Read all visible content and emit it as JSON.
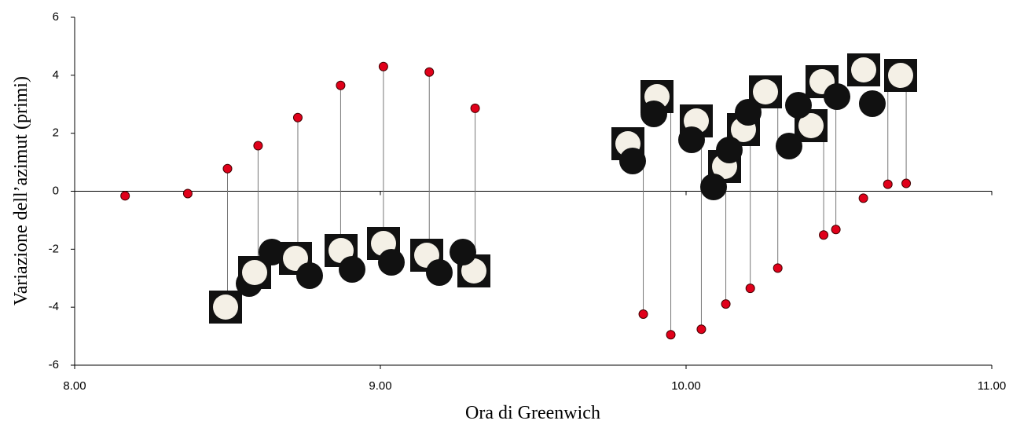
{
  "chart_data": {
    "type": "scatter",
    "x_label": "Ora di Greenwich",
    "y_label": "Variazione dell’azimut (primi)",
    "series": [
      {
        "color": "#e0001a",
        "x": [
          8.165,
          8.37,
          8.5,
          8.6,
          8.73,
          8.87,
          9.01,
          9.16,
          9.31,
          9.86,
          9.95,
          10.05,
          10.13,
          10.21,
          10.3,
          10.45,
          10.49,
          10.58,
          10.66,
          10.72
        ],
        "values": [
          -0.16,
          -0.08,
          0.78,
          1.57,
          2.54,
          3.65,
          4.3,
          4.11,
          2.86,
          -4.24,
          -4.95,
          -4.76,
          -3.89,
          -3.35,
          -2.65,
          -1.51,
          -1.32,
          -0.24,
          0.24,
          0.27
        ]
      }
    ],
    "xlim": [
      8,
      11
    ],
    "xticks": [
      {
        "value": 8,
        "label": "8.00"
      },
      {
        "value": 9,
        "label": "9.00"
      },
      {
        "value": 10,
        "label": "10.00"
      },
      {
        "value": 11,
        "label": "11.00"
      }
    ],
    "ylim": [
      -6,
      6
    ],
    "yticks": [
      -6,
      -4,
      -2,
      0,
      2,
      4,
      6
    ]
  }
}
